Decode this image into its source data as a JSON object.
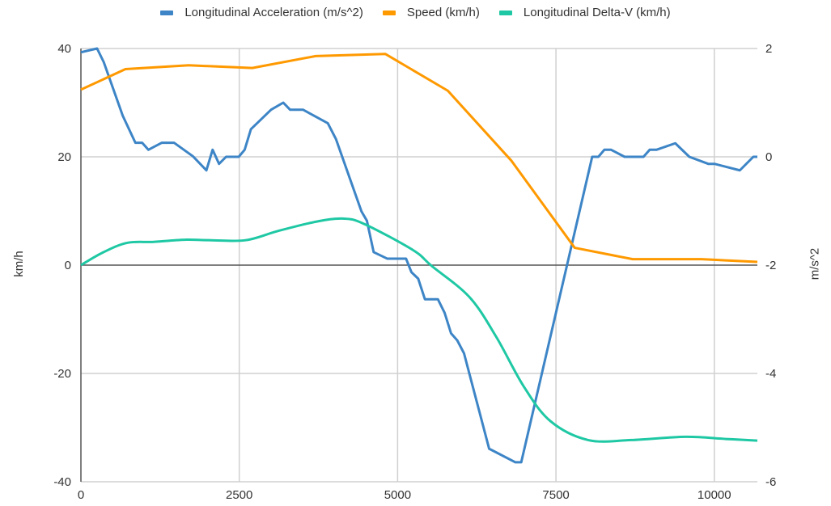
{
  "chart_data": {
    "type": "line",
    "title": "",
    "legend": "top",
    "grid": true,
    "x_axis": {
      "label": "",
      "range": [
        0,
        10680
      ],
      "ticks": [
        0,
        2500,
        5000,
        7500,
        10000
      ]
    },
    "y_left": {
      "label": "km/h",
      "range": [
        -40,
        40
      ],
      "ticks": [
        -40,
        -20,
        0,
        20,
        40
      ]
    },
    "y_right": {
      "label": "m/s^2",
      "range": [
        -6,
        2
      ],
      "ticks": [
        -6,
        -4,
        -2,
        0,
        2
      ]
    },
    "series": [
      {
        "name": "Longitudinal Acceleration (m/s^2)",
        "axis": "right",
        "color": "#3d85c6",
        "x": [
          0,
          255,
          360,
          660,
          860,
          967,
          1065,
          1278,
          1470,
          1768,
          1981,
          2079,
          2181,
          2292,
          2492,
          2585,
          2684,
          3003,
          3195,
          3302,
          3506,
          3898,
          4026,
          4430,
          4515,
          4622,
          4835,
          5133,
          5218,
          5325,
          5431,
          5636,
          5742,
          5844,
          5942,
          6049,
          6445,
          6858,
          6952,
          8072,
          8170,
          8264,
          8371,
          8584,
          8882,
          8980,
          9086,
          9384,
          9606,
          9904,
          10003,
          10403,
          10616,
          10680
        ],
        "y": [
          1.93,
          2.0,
          1.75,
          0.76,
          0.26,
          0.26,
          0.13,
          0.26,
          0.26,
          0.01,
          -0.25,
          0.13,
          -0.13,
          0,
          0,
          0.13,
          0.51,
          0.87,
          1.0,
          0.87,
          0.87,
          0.62,
          0.33,
          -1.01,
          -1.18,
          -1.76,
          -1.88,
          -1.88,
          -2.13,
          -2.25,
          -2.63,
          -2.63,
          -2.88,
          -3.26,
          -3.39,
          -3.63,
          -5.39,
          -5.64,
          -5.64,
          0,
          0,
          0.13,
          0.13,
          0,
          0,
          0.13,
          0.13,
          0.25,
          0,
          -0.13,
          -0.13,
          -0.25,
          0,
          0
        ]
      },
      {
        "name": "Speed (km/h)",
        "axis": "left",
        "color": "#ff9900",
        "x": [
          0,
          703,
          1704,
          2705,
          3706,
          4805,
          5793,
          6795,
          7796,
          8711,
          9798,
          10680
        ],
        "y": [
          32.4,
          36.2,
          36.9,
          36.4,
          38.6,
          39.0,
          32.2,
          19.3,
          3.2,
          1.1,
          1.1,
          0.6
        ]
      },
      {
        "name": "Longitudinal Delta-V (km/h)",
        "axis": "left",
        "color": "#1fc8a4",
        "smooth": true,
        "x": [
          0,
          341,
          724,
          1150,
          1661,
          2003,
          2598,
          3109,
          3706,
          4132,
          4473,
          5240,
          5538,
          6134,
          6560,
          6986,
          7412,
          8008,
          8690,
          9542,
          10181,
          10680
        ],
        "y": [
          0,
          2.3,
          4.1,
          4.3,
          4.7,
          4.6,
          4.6,
          6.3,
          8.0,
          8.6,
          7.6,
          2.8,
          -0.15,
          -5.9,
          -13.3,
          -22.3,
          -28.8,
          -32.3,
          -32.3,
          -31.7,
          -32.1,
          -32.4
        ]
      }
    ]
  }
}
